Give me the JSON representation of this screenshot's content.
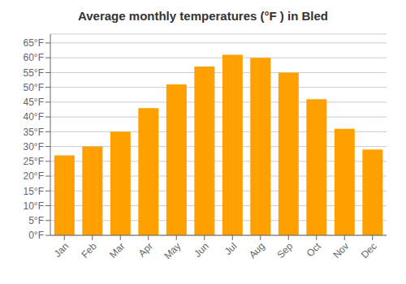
{
  "chart_data": {
    "type": "bar",
    "title": "Average monthly temperatures (°F ) in Bled",
    "categories": [
      "Jan",
      "Feb",
      "Mar",
      "Apr",
      "May",
      "Jun",
      "Jul",
      "Aug",
      "Sep",
      "Oct",
      "Nov",
      "Dec"
    ],
    "values": [
      27,
      30,
      35,
      43,
      51,
      57,
      61,
      60,
      55,
      46,
      36,
      29
    ],
    "color": "#FFA000",
    "ylim": [
      0,
      68
    ],
    "yticks": [
      {
        "value": 0,
        "label": "0°F"
      },
      {
        "value": 5,
        "label": "5°F"
      },
      {
        "value": 10,
        "label": "10°F"
      },
      {
        "value": 15,
        "label": "15°F"
      },
      {
        "value": 20,
        "label": "20°F"
      },
      {
        "value": 25,
        "label": "25°F"
      },
      {
        "value": 30,
        "label": "30°F"
      },
      {
        "value": 35,
        "label": "35°F"
      },
      {
        "value": 40,
        "label": "40°F"
      },
      {
        "value": 45,
        "label": "45°F"
      },
      {
        "value": 50,
        "label": "50°F"
      },
      {
        "value": 55,
        "label": "55°F"
      },
      {
        "value": 60,
        "label": "60°F"
      },
      {
        "value": 65,
        "label": "65°F"
      }
    ],
    "grid": true
  }
}
